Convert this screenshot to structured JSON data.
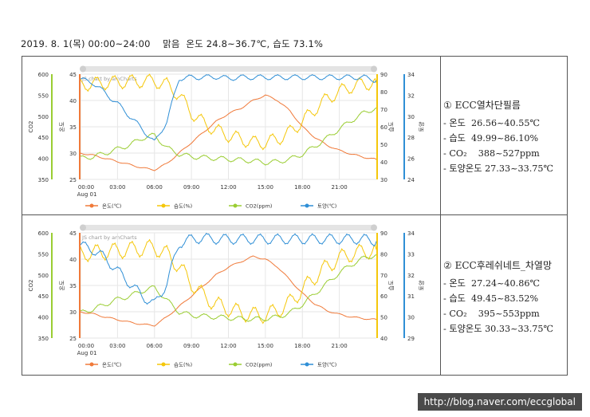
{
  "header": "2019. 8. 1(목) 00:00~24:00    맑음  온도 24.8~36.7℃, 습도 73.1%",
  "watermark": "http://blog.naver.com/eccglobal",
  "colors": {
    "temp": "#f07a3a",
    "hum": "#f5c70a",
    "co2": "#9acd32",
    "soil": "#2f8fd6"
  },
  "panels": [
    {
      "title": "① ECC열차단필름",
      "lines": [
        "- 온도  26.56~40.55℃",
        "- 습도  49.99~86.10%",
        "- CO₂    388~527ppm",
        "- 토양온도 27.33~33.75℃"
      ],
      "credit": "JS chart by amCharts"
    },
    {
      "title": "② ECC후레쉬네트_차열망",
      "lines": [
        "- 온도  27.24~40.86℃",
        "- 습도  49.45~83.52%",
        "- CO₂    395~553ppm",
        "- 토양온도 30.33~33.75℃"
      ],
      "credit": "JS chart by amCharts"
    }
  ],
  "chart_data": [
    {
      "type": "line",
      "x_ticks": [
        "00:00",
        "03:00",
        "06:00",
        "09:00",
        "12:00",
        "15:00",
        "18:00",
        "21:00"
      ],
      "x_sub": "Aug 01",
      "axes": {
        "co2": {
          "label": "CO2",
          "ticks": [
            350,
            400,
            450,
            500,
            550,
            600
          ],
          "range": [
            350,
            600
          ]
        },
        "temp": {
          "label": "온도",
          "ticks": [
            25,
            30,
            35,
            40,
            45
          ],
          "range": [
            25,
            45
          ]
        },
        "hum": {
          "label": "습도",
          "ticks": [
            30,
            40,
            50,
            60,
            70,
            80,
            90
          ],
          "range": [
            30,
            90
          ]
        },
        "soil": {
          "label": "토양",
          "ticks": [
            24,
            26,
            28,
            30,
            32,
            34
          ],
          "range": [
            24,
            34
          ]
        }
      },
      "legend": [
        "온도(℃)",
        "습도(%)",
        "CO2(ppm)",
        "토양(℃)"
      ],
      "series": [
        {
          "name": "온도(℃)",
          "axis": "temp",
          "x": [
            0,
            1,
            2,
            3,
            4,
            5,
            6,
            7,
            8,
            9,
            10,
            11,
            12,
            13,
            14,
            15,
            16,
            17,
            18,
            19,
            20,
            21,
            22,
            23,
            24
          ],
          "values": [
            30,
            29.6,
            29,
            28.4,
            27.8,
            27.2,
            26.8,
            28,
            30,
            32,
            34,
            36,
            37.5,
            38.5,
            40,
            41,
            40,
            38,
            35,
            33,
            31.5,
            30.5,
            29.8,
            29.2,
            28.8
          ]
        },
        {
          "name": "습도(%)",
          "axis": "hum",
          "x": [
            0,
            1,
            2,
            3,
            4,
            5,
            6,
            7,
            8,
            9,
            10,
            11,
            12,
            13,
            14,
            15,
            16,
            17,
            18,
            19,
            20,
            21,
            22,
            23,
            24
          ],
          "values": [
            84,
            84.5,
            85,
            85.5,
            85.8,
            86,
            86,
            84,
            78,
            68,
            62,
            58,
            55,
            53,
            51,
            51,
            53,
            57,
            63,
            70,
            76,
            80,
            83,
            84.5,
            85
          ]
        },
        {
          "name": "CO2(ppm)",
          "axis": "co2",
          "x": [
            0,
            1,
            2,
            3,
            4,
            5,
            6,
            7,
            8,
            9,
            10,
            11,
            12,
            13,
            14,
            15,
            16,
            17,
            18,
            19,
            20,
            21,
            22,
            23,
            24
          ],
          "values": [
            400,
            404,
            412,
            422,
            432,
            448,
            455,
            425,
            410,
            404,
            402,
            400,
            398,
            396,
            394,
            390,
            392,
            398,
            410,
            428,
            448,
            470,
            490,
            508,
            520
          ]
        },
        {
          "name": "토양(℃)",
          "axis": "soil",
          "x": [
            0,
            1,
            2,
            3,
            4,
            5,
            6,
            7,
            8,
            9,
            10,
            11,
            12,
            13,
            14,
            15,
            16,
            17,
            18,
            19,
            20,
            21,
            22,
            23,
            24
          ],
          "values": [
            33.5,
            33.2,
            32.2,
            31.2,
            30,
            28.8,
            27.5,
            29.5,
            33.6,
            33.7,
            33.7,
            33.75,
            33.6,
            33.7,
            33.7,
            33.7,
            33.7,
            33.7,
            33.7,
            33.7,
            33.7,
            33.7,
            33.7,
            33.7,
            33.4
          ]
        }
      ]
    },
    {
      "type": "line",
      "x_ticks": [
        "00:00",
        "03:00",
        "06:00",
        "09:00",
        "12:00",
        "15:00",
        "18:00",
        "21:00"
      ],
      "x_sub": "Aug 01",
      "axes": {
        "co2": {
          "label": "CO2",
          "ticks": [
            350,
            400,
            450,
            500,
            550,
            600
          ],
          "range": [
            350,
            600
          ]
        },
        "temp": {
          "label": "온도",
          "ticks": [
            25,
            30,
            35,
            40,
            45
          ],
          "range": [
            25,
            45
          ]
        },
        "hum": {
          "label": "습도",
          "ticks": [
            40,
            50,
            60,
            70,
            80,
            90
          ],
          "range": [
            40,
            90
          ]
        },
        "soil": {
          "label": "토양",
          "ticks": [
            29,
            30,
            31,
            32,
            33,
            34
          ],
          "range": [
            29,
            34
          ]
        }
      },
      "legend": [
        "온도(℃)",
        "습도(%)",
        "CO2(ppm)",
        "토양(℃)"
      ],
      "series": [
        {
          "name": "온도(℃)",
          "axis": "temp",
          "x": [
            0,
            1,
            2,
            3,
            4,
            5,
            6,
            7,
            8,
            9,
            10,
            11,
            12,
            13,
            14,
            15,
            16,
            17,
            18,
            19,
            20,
            21,
            22,
            23,
            24
          ],
          "values": [
            30,
            29.6,
            29,
            28.5,
            28,
            27.6,
            27.4,
            29,
            31,
            33,
            35,
            37,
            38.5,
            39.5,
            40.5,
            40,
            38.5,
            36,
            33.5,
            31.5,
            30.2,
            29.5,
            29,
            28.7,
            28.5
          ]
        },
        {
          "name": "습도(%)",
          "axis": "hum",
          "x": [
            0,
            1,
            2,
            3,
            4,
            5,
            6,
            7,
            8,
            9,
            10,
            11,
            12,
            13,
            14,
            15,
            16,
            17,
            18,
            19,
            20,
            21,
            22,
            23,
            24
          ],
          "values": [
            80,
            80.5,
            81,
            81.5,
            82,
            82.5,
            83,
            80,
            74,
            66,
            60,
            56,
            54,
            52,
            51,
            51,
            53,
            57,
            63,
            69,
            74,
            78,
            80,
            81,
            82
          ]
        },
        {
          "name": "CO2(ppm)",
          "axis": "co2",
          "x": [
            0,
            1,
            2,
            3,
            4,
            5,
            6,
            7,
            8,
            9,
            10,
            11,
            12,
            13,
            14,
            15,
            16,
            17,
            18,
            19,
            20,
            21,
            22,
            23,
            24
          ],
          "values": [
            410,
            418,
            430,
            442,
            450,
            462,
            470,
            440,
            412,
            404,
            402,
            400,
            398,
            396,
            395,
            396,
            400,
            410,
            430,
            455,
            480,
            505,
            525,
            540,
            548
          ]
        },
        {
          "name": "토양(℃)",
          "axis": "soil",
          "x": [
            0,
            1,
            2,
            3,
            4,
            5,
            6,
            7,
            8,
            9,
            10,
            11,
            12,
            13,
            14,
            15,
            16,
            17,
            18,
            19,
            20,
            21,
            22,
            23,
            24
          ],
          "values": [
            33.4,
            33.2,
            32.8,
            32.2,
            31.6,
            31,
            30.6,
            31.6,
            33.5,
            33.7,
            33.75,
            33.7,
            33.7,
            33.7,
            33.7,
            33.7,
            33.7,
            33.7,
            33.7,
            33.7,
            33.7,
            33.7,
            33.7,
            33.7,
            33.6
          ]
        }
      ]
    }
  ]
}
